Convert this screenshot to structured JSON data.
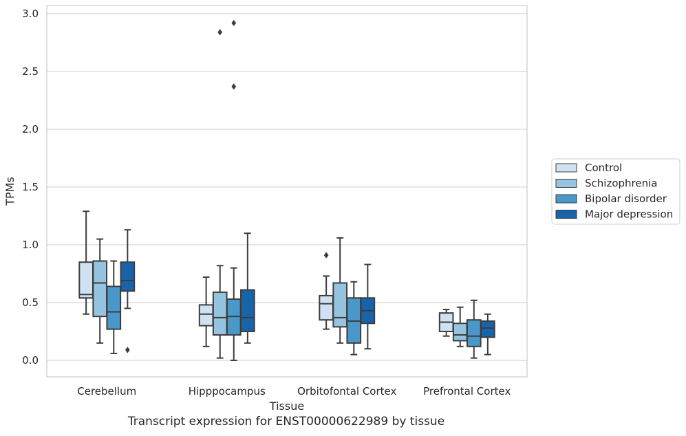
{
  "chart_data": {
    "type": "box",
    "xlabel": "Tissue",
    "ylabel": "TPMs",
    "ylim": [
      -0.14,
      3.07
    ],
    "yticks": [
      "0.0",
      "0.5",
      "1.0",
      "1.5",
      "2.0",
      "2.5",
      "3.0"
    ],
    "grid": true,
    "legend_position": "right",
    "categories": [
      "Cerebellum",
      "Hipppocampus",
      "Orbitofontal Cortex",
      "Prefrontal Cortex"
    ],
    "series": [
      {
        "name": "Control",
        "color": "#d0e1f2",
        "boxes": [
          {
            "whislo": 0.4,
            "q1": 0.54,
            "med": 0.57,
            "q3": 0.85,
            "whishi": 1.29,
            "fliers": []
          },
          {
            "whislo": 0.12,
            "q1": 0.3,
            "med": 0.4,
            "q3": 0.48,
            "whishi": 0.72,
            "fliers": []
          },
          {
            "whislo": 0.27,
            "q1": 0.35,
            "med": 0.49,
            "q3": 0.56,
            "whishi": 0.73,
            "fliers": [
              0.91
            ]
          },
          {
            "whislo": 0.21,
            "q1": 0.25,
            "med": 0.33,
            "q3": 0.41,
            "whishi": 0.44,
            "fliers": []
          }
        ]
      },
      {
        "name": "Schizophrenia",
        "color": "#94c4df",
        "boxes": [
          {
            "whislo": 0.15,
            "q1": 0.38,
            "med": 0.67,
            "q3": 0.86,
            "whishi": 1.05,
            "fliers": []
          },
          {
            "whislo": 0.02,
            "q1": 0.22,
            "med": 0.37,
            "q3": 0.59,
            "whishi": 0.82,
            "fliers": []
          },
          {
            "whislo": 0.15,
            "q1": 0.29,
            "med": 0.37,
            "q3": 0.67,
            "whishi": 1.06,
            "fliers": []
          },
          {
            "whislo": 0.12,
            "q1": 0.17,
            "med": 0.22,
            "q3": 0.32,
            "whishi": 0.46,
            "fliers": []
          }
        ]
      },
      {
        "name": "Bipolar disorder",
        "color": "#4a98c9",
        "boxes": [
          {
            "whislo": 0.06,
            "q1": 0.27,
            "med": 0.42,
            "q3": 0.64,
            "whishi": 0.86,
            "fliers": []
          },
          {
            "whislo": 0.0,
            "q1": 0.22,
            "med": 0.38,
            "q3": 0.53,
            "whishi": 0.8,
            "fliers": [
              2.37,
              2.92
            ]
          },
          {
            "whislo": 0.05,
            "q1": 0.15,
            "med": 0.34,
            "q3": 0.54,
            "whishi": 0.68,
            "fliers": []
          },
          {
            "whislo": 0.02,
            "q1": 0.12,
            "med": 0.21,
            "q3": 0.35,
            "whishi": 0.52,
            "fliers": []
          }
        ]
      },
      {
        "name": "Major depression",
        "color": "#1764ab",
        "boxes": [
          {
            "whislo": 0.45,
            "q1": 0.6,
            "med": 0.69,
            "q3": 0.85,
            "whishi": 1.13,
            "fliers": [
              0.09
            ]
          },
          {
            "whislo": 0.15,
            "q1": 0.25,
            "med": 0.37,
            "q3": 0.61,
            "whishi": 1.1,
            "fliers": []
          },
          {
            "whislo": 0.1,
            "q1": 0.32,
            "med": 0.43,
            "q3": 0.54,
            "whishi": 0.83,
            "fliers": []
          },
          {
            "whislo": 0.05,
            "q1": 0.2,
            "med": 0.28,
            "q3": 0.34,
            "whishi": 0.4,
            "fliers": []
          }
        ]
      }
    ],
    "extra_fliers": [
      {
        "category": "Hipppocampus",
        "series": "Schizophrenia",
        "value": 2.84
      }
    ]
  },
  "caption": "Transcript expression for ENST00000622989 by tissue"
}
